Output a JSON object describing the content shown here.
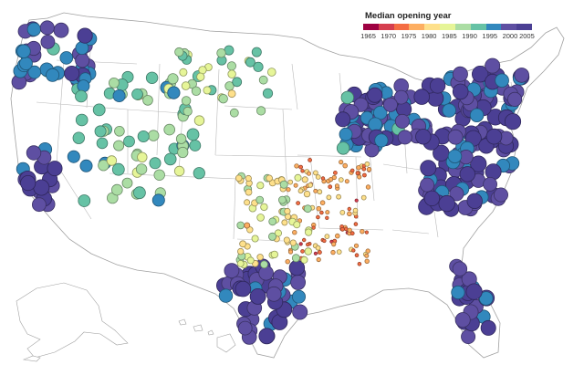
{
  "legend": {
    "title": "Median opening year",
    "ticks": [
      "1965",
      "1970",
      "1975",
      "1980",
      "1985",
      "1990",
      "1995",
      "2000",
      "2005"
    ],
    "colors": [
      "#9e0142",
      "#d53e4f",
      "#f46d43",
      "#fdae61",
      "#fee08b",
      "#e6f598",
      "#abdda4",
      "#66c2a5",
      "#3288bd",
      "#5e4fa2",
      "#4b3f94"
    ]
  },
  "map_data": {
    "type": "dot_map",
    "region": "United States (contiguous, with Alaska and Hawaii insets)",
    "value_range": [
      1962,
      2007
    ],
    "clusters": [
      {
        "region": "Northeast / Mid-Atlantic corridor",
        "median_year": 2004
      },
      {
        "region": "Florida peninsula",
        "median_year": 2004
      },
      {
        "region": "California coast",
        "median_year": 2003
      },
      {
        "region": "Pacific Northwest",
        "median_year": 2001
      },
      {
        "region": "Great Lakes",
        "median_year": 2001
      },
      {
        "region": "Texas metro areas",
        "median_year": 2003
      },
      {
        "region": "Rocky Mountain West",
        "median_year": 1992
      },
      {
        "region": "Northern Plains",
        "median_year": 1988
      },
      {
        "region": "Mississippi Valley / Arkansas",
        "median_year": 1974
      },
      {
        "region": "Southern Plains",
        "median_year": 1983
      }
    ]
  }
}
